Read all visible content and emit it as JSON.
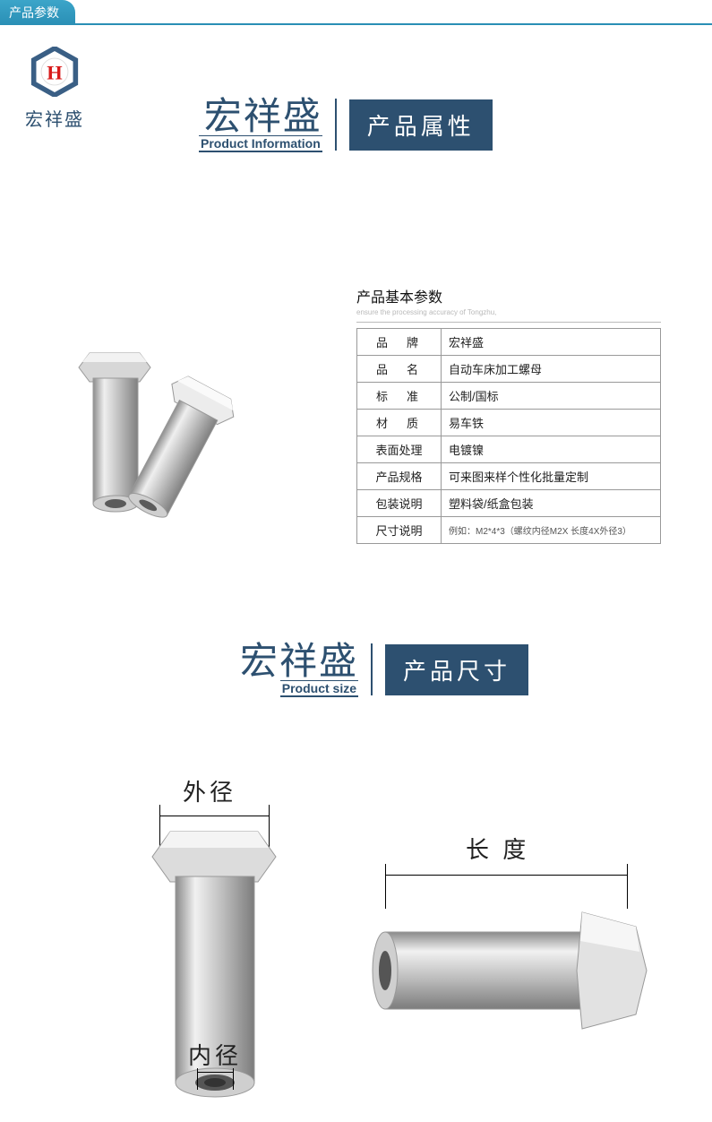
{
  "header": {
    "tab_label": "产品参数"
  },
  "logo": {
    "brand": "宏祥盛",
    "letter": "H",
    "hex_color": "#3a5f85",
    "h_color": "#d81a1a"
  },
  "section1": {
    "brand_cn": "宏祥盛",
    "brand_en": "Product Information",
    "badge": "产品属性",
    "badge_bg": "#2d5070"
  },
  "spec": {
    "title": "产品基本参数",
    "subtitle": "ensure the processing accuracy of Tongzhu,",
    "rows": [
      {
        "k": "品　牌",
        "v": "宏祥盛",
        "tight": false
      },
      {
        "k": "品　名",
        "v": "自动车床加工螺母",
        "tight": false
      },
      {
        "k": "标　准",
        "v": "公制/国标",
        "tight": false
      },
      {
        "k": "材　质",
        "v": "易车铁",
        "tight": false
      },
      {
        "k": "表面处理",
        "v": "电镀镍",
        "tight": true
      },
      {
        "k": "产品规格",
        "v": "可来图来样个性化批量定制",
        "tight": true
      },
      {
        "k": "包装说明",
        "v": "塑料袋/纸盒包装",
        "tight": true
      },
      {
        "k": "尺寸说明",
        "v": "例如：M2*4*3（螺纹内径M2X 长度4X外径3）",
        "tight": true,
        "small": true
      }
    ]
  },
  "section2": {
    "brand_cn": "宏祥盛",
    "brand_en": "Product size",
    "badge": "产品尺寸"
  },
  "dimensions": {
    "outer_label": "外径",
    "inner_label": "内径",
    "length_label": "长 度"
  },
  "colors": {
    "header_teal": "#2a8fb5",
    "brand_blue": "#2d5070",
    "metal_light": "#e7e7e7",
    "metal_dark": "#a8a8a8",
    "border_gray": "#999999"
  }
}
